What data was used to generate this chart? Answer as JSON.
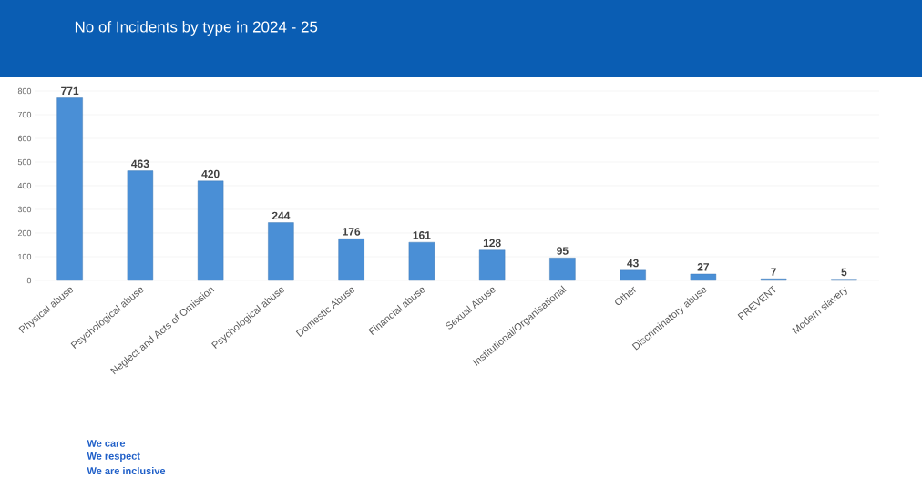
{
  "chart_data": {
    "type": "bar",
    "title": "No of Incidents by type in 2024 - 25",
    "categories": [
      "Physical abuse",
      "Psychological abuse",
      "Neglect and Acts of Omission",
      "Psychological abuse",
      "Domestic Abuse",
      "Financial abuse",
      "Sexual Abuse",
      "Institutional/Organisational",
      "Other",
      "Discriminatory abuse",
      "PREVENT",
      "Modern slavery"
    ],
    "values": [
      771,
      463,
      420,
      244,
      176,
      161,
      128,
      95,
      43,
      27,
      7,
      5
    ],
    "color": "#4a8fd6",
    "ylim": [
      0,
      800
    ],
    "yticks": [
      0,
      100,
      200,
      300,
      400,
      500,
      600,
      700,
      800
    ],
    "grid": "y",
    "data_labels": true,
    "annotations": [
      "We care",
      "We respect",
      "We are inclusive"
    ]
  }
}
